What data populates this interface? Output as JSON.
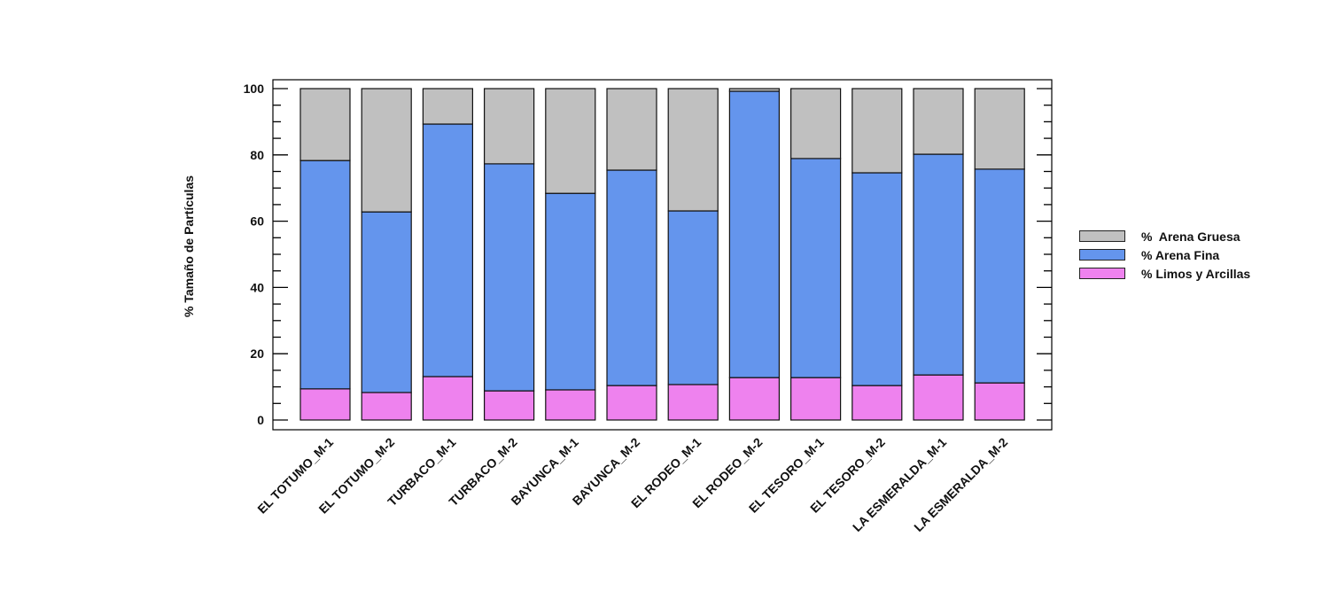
{
  "chart_data": {
    "type": "bar",
    "stacked": true,
    "title": "",
    "xlabel": "",
    "ylabel": "% Tamaño de Partículas",
    "ylim": [
      0,
      100
    ],
    "yticks": [
      0,
      20,
      40,
      60,
      80,
      100
    ],
    "grid": false,
    "legend_position": "right",
    "categories": [
      "EL TOTUMO_M-1",
      "EL TOTUMO_M-2",
      "TURBACO_M-1",
      "TURBACO_M-2",
      "BAYUNCA_M-1",
      "BAYUNCA_M-2",
      "EL RODEO_M-1",
      "EL RODEO_M-2",
      "EL TESORO_M-1",
      "EL TESORO_M-2",
      "LA ESMERALDA_M-1",
      "LA ESMERALDA_M-2"
    ],
    "series": [
      {
        "name": "% Limos y Arcillas",
        "color": "#EE82EE",
        "values": [
          9.4,
          8.3,
          13.1,
          8.8,
          9.1,
          10.4,
          10.7,
          12.8,
          12.8,
          10.4,
          13.6,
          11.2
        ]
      },
      {
        "name": "% Arena Fina",
        "color": "#6495ED",
        "values": [
          68.9,
          54.5,
          76.2,
          68.5,
          59.3,
          65.0,
          52.4,
          86.4,
          66.1,
          64.2,
          66.6,
          64.5
        ]
      },
      {
        "name": "%  Arena Gruesa",
        "color": "#C0C0C0",
        "values": [
          21.7,
          37.2,
          10.7,
          22.7,
          31.6,
          24.6,
          36.9,
          0.8,
          21.1,
          25.4,
          19.8,
          24.3
        ]
      }
    ]
  },
  "legend": {
    "items": [
      {
        "label": "%  Arena Gruesa",
        "color": "#C0C0C0"
      },
      {
        "label": "% Arena Fina",
        "color": "#6495ED"
      },
      {
        "label": "% Limos y Arcillas",
        "color": "#EE82EE"
      }
    ]
  }
}
